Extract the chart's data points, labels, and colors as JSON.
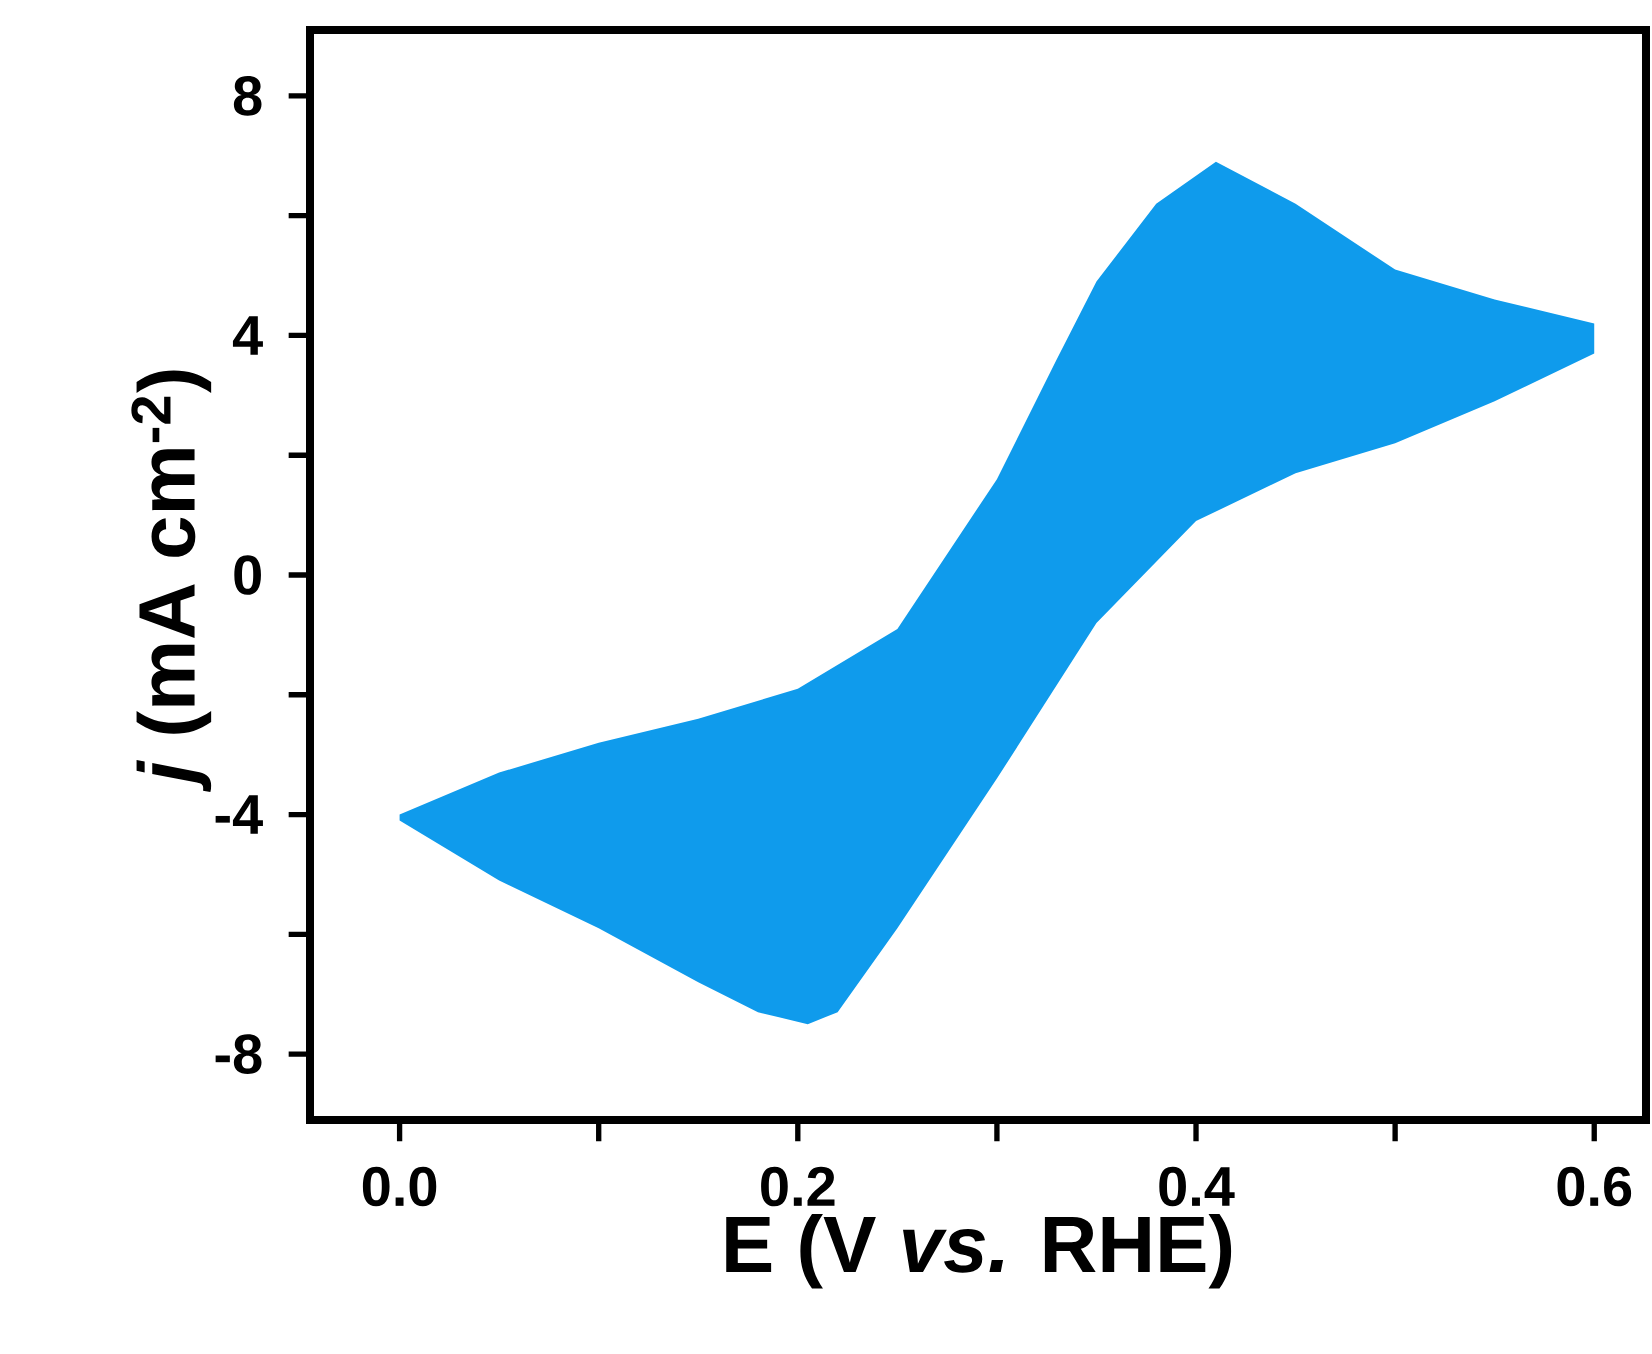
{
  "chart_data": {
    "type": "area",
    "xlabel": "E (V *vs.* RHE)",
    "ylabel": "*j* (mA cm$^{-2}$)",
    "xlim": [
      -0.045,
      0.626
    ],
    "ylim": [
      -9.1,
      9.1
    ],
    "xticks": [
      {
        "value": 0,
        "label": "0.0"
      },
      {
        "value": 0.1,
        "label": null
      },
      {
        "value": 0.2,
        "label": "0.2"
      },
      {
        "value": 0.3,
        "label": null
      },
      {
        "value": 0.4,
        "label": "0.4"
      },
      {
        "value": 0.5,
        "label": null
      },
      {
        "value": 0.6,
        "label": "0.6"
      }
    ],
    "yticks": [
      -8,
      {
        "value": -6,
        "label": null
      },
      -4,
      {
        "value": -2,
        "label": null
      },
      0,
      {
        "value": 2,
        "label": null
      },
      4,
      {
        "value": 6,
        "label": null
      },
      8
    ],
    "series": [
      {
        "color": "#0f9bec",
        "x": [
          0,
          0.05,
          0.1,
          0.15,
          0.2,
          0.25,
          0.3,
          0.33,
          0.35,
          0.38,
          0.41,
          0.45,
          0.5,
          0.55,
          0.6,
          0.6,
          0.55,
          0.5,
          0.45,
          0.4,
          0.35,
          0.3,
          0.25,
          0.22,
          0.205,
          0.18,
          0.15,
          0.1,
          0.05,
          0
        ],
        "values": [
          -4.0,
          -3.3,
          -2.8,
          -2.4,
          -1.9,
          -0.9,
          1.6,
          3.6,
          4.9,
          6.2,
          6.9,
          6.2,
          5.1,
          4.6,
          4.2,
          3.7,
          2.9,
          2.2,
          1.7,
          0.9,
          -0.8,
          -3.4,
          -5.9,
          -7.3,
          -7.5,
          -7.3,
          -6.8,
          -5.9,
          -5.1,
          -4.1
        ]
      }
    ]
  }
}
